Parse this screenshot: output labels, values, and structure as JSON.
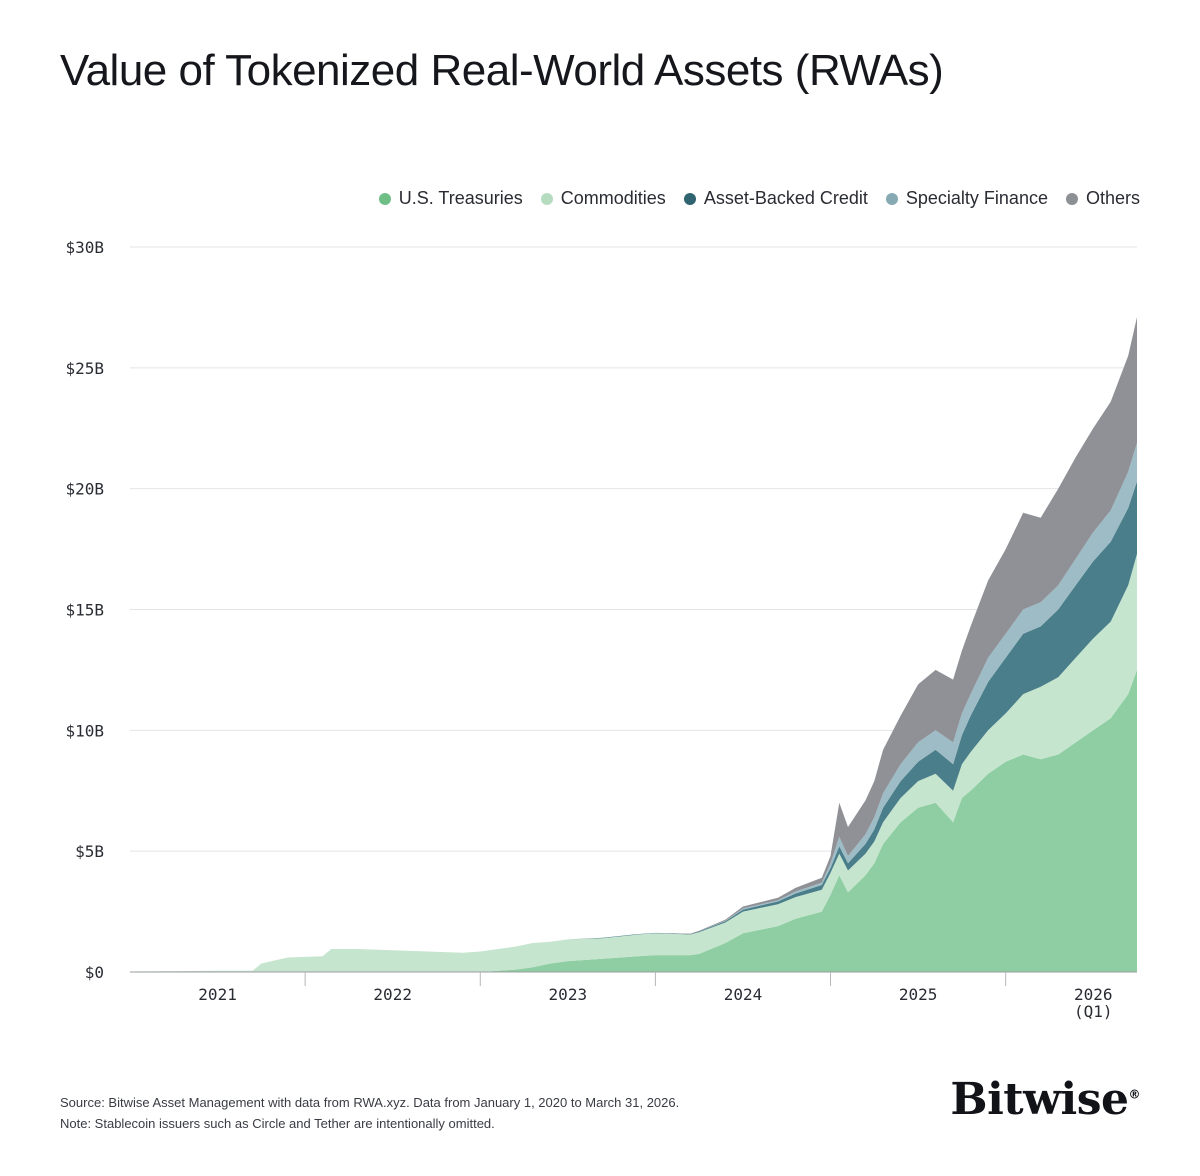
{
  "title": "Value of Tokenized Real-World Assets (RWAs)",
  "legend": [
    {
      "label": "U.S. Treasuries",
      "color": "#6fbe86"
    },
    {
      "label": "Commodities",
      "color": "#b6dcc0"
    },
    {
      "label": "Asset-Backed Credit",
      "color": "#2f6470"
    },
    {
      "label": "Specialty Finance",
      "color": "#86aab4"
    },
    {
      "label": "Others",
      "color": "#8c8f94"
    }
  ],
  "footer": {
    "line1": "Source: Bitwise Asset Management with data from RWA.xyz. Data from January 1, 2020 to March 31, 2026.",
    "line2": "Note: Stablecoin issuers such as Circle and Tether are intentionally omitted."
  },
  "brand": "Bitwise",
  "brand_mark": "®",
  "chart_data": {
    "type": "area",
    "stacked": true,
    "ylim": [
      0,
      30
    ],
    "xlim": [
      2020.5,
      2026.25
    ],
    "y_ticks": [
      {
        "value": 0,
        "label": "$0"
      },
      {
        "value": 5,
        "label": "$5B"
      },
      {
        "value": 10,
        "label": "$10B"
      },
      {
        "value": 15,
        "label": "$15B"
      },
      {
        "value": 20,
        "label": "$20B"
      },
      {
        "value": 25,
        "label": "$25B"
      },
      {
        "value": 30,
        "label": "$30B"
      }
    ],
    "x_ticks": [
      {
        "value": 2021,
        "label": "2021"
      },
      {
        "value": 2022,
        "label": "2022"
      },
      {
        "value": 2023,
        "label": "2023"
      },
      {
        "value": 2024,
        "label": "2024"
      },
      {
        "value": 2025,
        "label": "2025"
      },
      {
        "value": 2026,
        "label": "2026",
        "sublabel": "(Q1)"
      }
    ],
    "x_dividers": [
      2021.5,
      2022.5,
      2023.5,
      2024.5,
      2025.5
    ],
    "x": [
      2020.5,
      2021.0,
      2021.2,
      2021.25,
      2021.4,
      2021.6,
      2021.65,
      2021.8,
      2022.0,
      2022.2,
      2022.4,
      2022.5,
      2022.6,
      2022.7,
      2022.8,
      2022.9,
      2023.0,
      2023.2,
      2023.4,
      2023.5,
      2023.7,
      2023.75,
      2023.9,
      2024.0,
      2024.2,
      2024.3,
      2024.45,
      2024.5,
      2024.55,
      2024.6,
      2024.7,
      2024.75,
      2024.8,
      2024.9,
      2025.0,
      2025.1,
      2025.2,
      2025.25,
      2025.3,
      2025.4,
      2025.5,
      2025.6,
      2025.7,
      2025.8,
      2025.9,
      2026.0,
      2026.1,
      2026.2,
      2026.25
    ],
    "series": [
      {
        "name": "U.S. Treasuries",
        "color": "#8fcea2",
        "values": [
          0,
          0,
          0,
          0,
          0,
          0,
          0,
          0,
          0,
          0,
          0,
          0,
          0.05,
          0.1,
          0.2,
          0.35,
          0.45,
          0.55,
          0.65,
          0.7,
          0.7,
          0.75,
          1.2,
          1.6,
          1.9,
          2.2,
          2.5,
          3.2,
          4.0,
          3.3,
          4.0,
          4.5,
          5.3,
          6.2,
          6.8,
          7.0,
          6.2,
          7.2,
          7.5,
          8.2,
          8.7,
          9.0,
          8.8,
          9.0,
          9.5,
          10.0,
          10.5,
          11.5,
          12.5
        ]
      },
      {
        "name": "Commodities",
        "color": "#c6e5cf",
        "values": [
          0.02,
          0.05,
          0.05,
          0.35,
          0.6,
          0.65,
          0.95,
          0.95,
          0.9,
          0.85,
          0.8,
          0.85,
          0.9,
          0.95,
          1.0,
          0.9,
          0.9,
          0.85,
          0.9,
          0.9,
          0.85,
          0.9,
          0.85,
          0.9,
          0.9,
          0.9,
          0.9,
          0.9,
          0.9,
          0.9,
          0.9,
          0.9,
          0.9,
          1.0,
          1.1,
          1.2,
          1.3,
          1.4,
          1.6,
          1.8,
          2.0,
          2.5,
          3.0,
          3.2,
          3.5,
          3.8,
          4.0,
          4.5,
          4.8
        ]
      },
      {
        "name": "Asset-Backed Credit",
        "color": "#4a7e8a",
        "values": [
          0,
          0,
          0,
          0,
          0,
          0,
          0,
          0,
          0,
          0,
          0,
          0,
          0,
          0,
          0,
          0,
          0,
          0.02,
          0.02,
          0.02,
          0.02,
          0.03,
          0.05,
          0.08,
          0.12,
          0.15,
          0.2,
          0.2,
          0.3,
          0.3,
          0.4,
          0.5,
          0.6,
          0.7,
          0.8,
          1.0,
          1.1,
          1.2,
          1.5,
          2.0,
          2.3,
          2.5,
          2.5,
          2.8,
          3.0,
          3.2,
          3.3,
          3.2,
          3.0
        ]
      },
      {
        "name": "Specialty Finance",
        "color": "#9dbcc5",
        "values": [
          0,
          0,
          0,
          0,
          0,
          0,
          0,
          0,
          0,
          0,
          0,
          0,
          0,
          0,
          0,
          0,
          0,
          0,
          0,
          0,
          0,
          0,
          0.02,
          0.05,
          0.05,
          0.08,
          0.1,
          0.2,
          0.4,
          0.3,
          0.4,
          0.5,
          0.6,
          0.7,
          0.8,
          0.8,
          0.9,
          0.9,
          0.9,
          1.0,
          1.0,
          1.0,
          1.0,
          1.0,
          1.1,
          1.2,
          1.3,
          1.5,
          1.6
        ]
      },
      {
        "name": "Others",
        "color": "#8f9196",
        "values": [
          0,
          0,
          0,
          0,
          0,
          0,
          0,
          0,
          0,
          0,
          0,
          0,
          0,
          0,
          0,
          0,
          0,
          0,
          0,
          0,
          0.02,
          0.03,
          0.05,
          0.08,
          0.1,
          0.15,
          0.2,
          0.3,
          1.4,
          1.2,
          1.4,
          1.5,
          1.8,
          2.0,
          2.4,
          2.5,
          2.6,
          2.6,
          2.8,
          3.2,
          3.5,
          4.0,
          3.5,
          4.0,
          4.2,
          4.3,
          4.5,
          4.8,
          5.2
        ]
      }
    ]
  }
}
